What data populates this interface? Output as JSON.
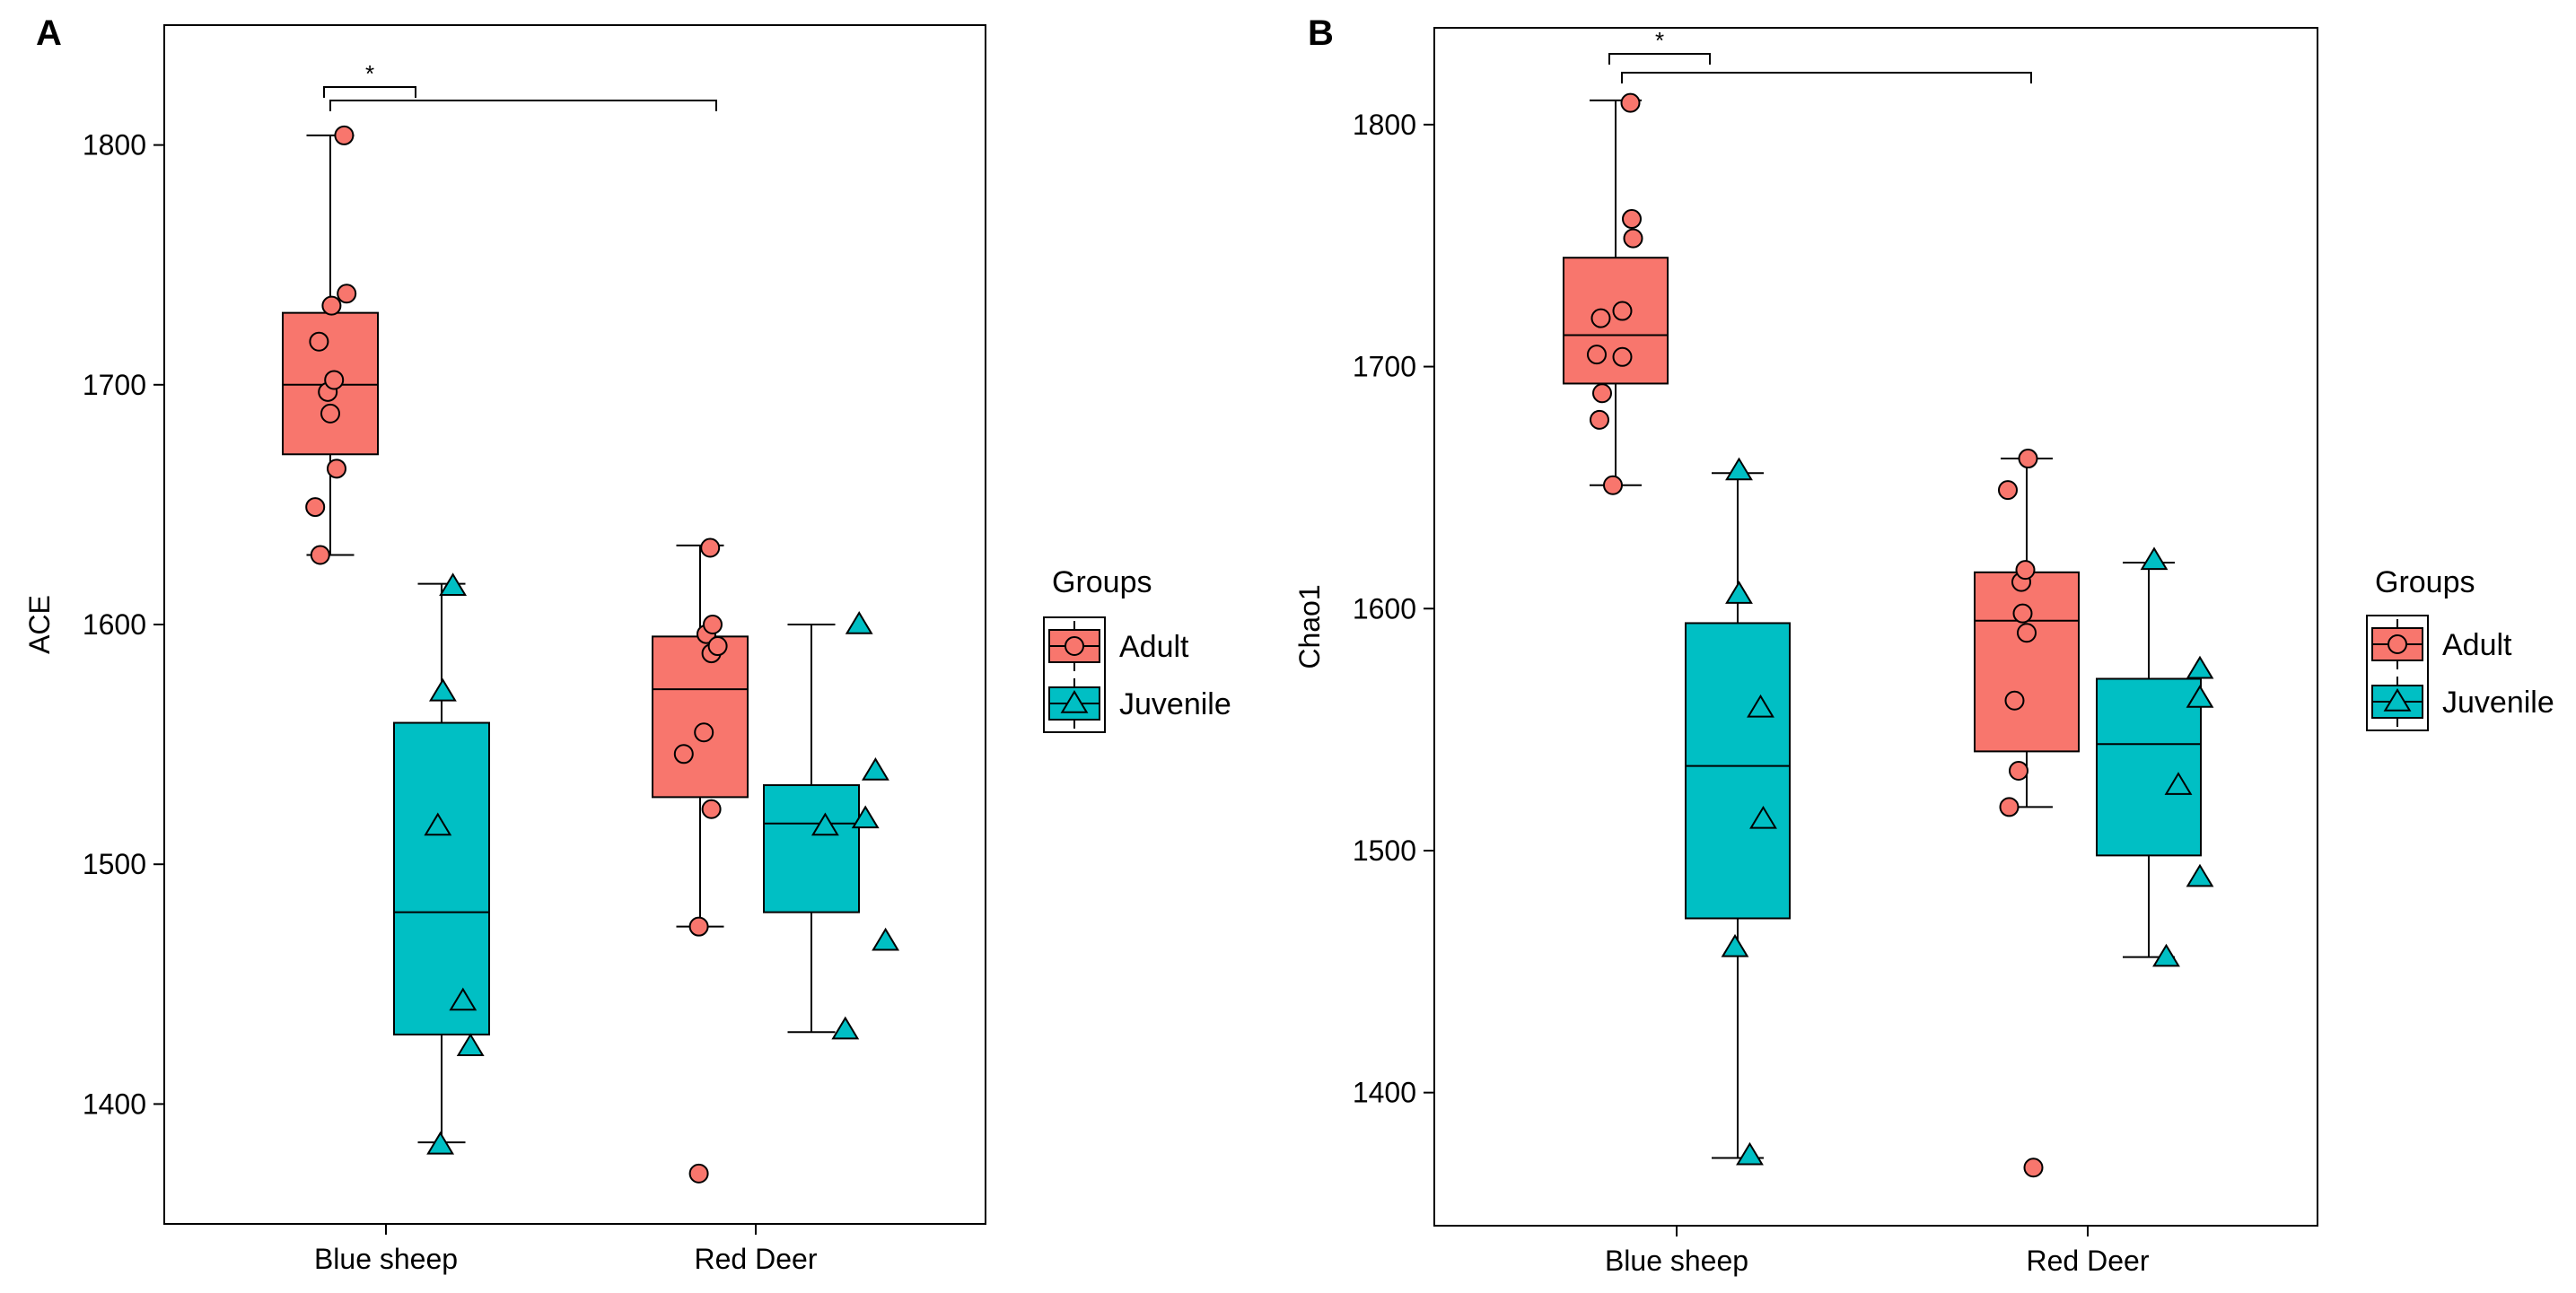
{
  "chart_data": [
    {
      "type": "box",
      "panel_label": "A",
      "ylabel": "ACE",
      "xlabel": "",
      "categories": [
        "Blue sheep",
        "Red Deer"
      ],
      "ylim": [
        1350,
        1850
      ],
      "yticks": [
        1400,
        1500,
        1600,
        1700,
        1800
      ],
      "series": [
        {
          "name": "Adult",
          "color": "#F8766D",
          "marker": "circle",
          "boxes": [
            {
              "category": "Blue sheep",
              "whisker_low": 1629,
              "q1": 1671,
              "median": 1700,
              "q3": 1730,
              "whisker_high": 1804
            },
            {
              "category": "Red Deer",
              "whisker_low": 1474,
              "q1": 1528,
              "median": 1573,
              "q3": 1595,
              "whisker_high": 1633
            }
          ],
          "points": [
            {
              "category": "Blue sheep",
              "offset": -0.12,
              "value": 1649
            },
            {
              "category": "Blue sheep",
              "offset": -0.08,
              "value": 1629
            },
            {
              "category": "Blue sheep",
              "offset": -0.09,
              "value": 1718
            },
            {
              "category": "Blue sheep",
              "offset": -0.02,
              "value": 1697
            },
            {
              "category": "Blue sheep",
              "offset": 0.0,
              "value": 1688
            },
            {
              "category": "Blue sheep",
              "offset": 0.01,
              "value": 1733
            },
            {
              "category": "Blue sheep",
              "offset": 0.03,
              "value": 1702
            },
            {
              "category": "Blue sheep",
              "offset": 0.05,
              "value": 1665
            },
            {
              "category": "Blue sheep",
              "offset": 0.11,
              "value": 1804
            },
            {
              "category": "Blue sheep",
              "offset": 0.13,
              "value": 1738
            },
            {
              "category": "Red Deer",
              "offset": -0.13,
              "value": 1546
            },
            {
              "category": "Red Deer",
              "offset": -0.01,
              "value": 1474
            },
            {
              "category": "Red Deer",
              "offset": 0.03,
              "value": 1555
            },
            {
              "category": "Red Deer",
              "offset": 0.05,
              "value": 1596
            },
            {
              "category": "Red Deer",
              "offset": 0.08,
              "value": 1632
            },
            {
              "category": "Red Deer",
              "offset": 0.09,
              "value": 1523
            },
            {
              "category": "Red Deer",
              "offset": 0.09,
              "value": 1588
            },
            {
              "category": "Red Deer",
              "offset": 0.1,
              "value": 1600
            },
            {
              "category": "Red Deer",
              "offset": 0.14,
              "value": 1591
            },
            {
              "category": "Red Deer",
              "offset": -0.01,
              "value": 1371
            }
          ]
        },
        {
          "name": "Juvenile",
          "color": "#00BFC4",
          "marker": "triangle",
          "boxes": [
            {
              "category": "Blue sheep",
              "whisker_low": 1384,
              "q1": 1429,
              "median": 1480,
              "q3": 1559,
              "whisker_high": 1617
            },
            {
              "category": "Red Deer",
              "whisker_low": 1430,
              "q1": 1480,
              "median": 1517,
              "q3": 1533,
              "whisker_high": 1600
            }
          ],
          "points": [
            {
              "category": "Blue sheep",
              "offset": -0.03,
              "value": 1516
            },
            {
              "category": "Blue sheep",
              "offset": -0.01,
              "value": 1383
            },
            {
              "category": "Blue sheep",
              "offset": 0.01,
              "value": 1572
            },
            {
              "category": "Blue sheep",
              "offset": 0.09,
              "value": 1616
            },
            {
              "category": "Blue sheep",
              "offset": 0.17,
              "value": 1443
            },
            {
              "category": "Blue sheep",
              "offset": 0.23,
              "value": 1424
            },
            {
              "category": "Red Deer",
              "offset": 0.11,
              "value": 1516
            },
            {
              "category": "Red Deer",
              "offset": 0.27,
              "value": 1431
            },
            {
              "category": "Red Deer",
              "offset": 0.38,
              "value": 1600
            },
            {
              "category": "Red Deer",
              "offset": 0.43,
              "value": 1519
            },
            {
              "category": "Red Deer",
              "offset": 0.51,
              "value": 1539
            },
            {
              "category": "Red Deer",
              "offset": 0.59,
              "value": 1468
            }
          ]
        }
      ],
      "significance": [
        {
          "from": "Blue sheep Adult",
          "to": "Blue sheep Juvenile",
          "label": "*"
        },
        {
          "from": "Blue sheep Adult",
          "to": "Red Deer Adult",
          "label": ""
        }
      ],
      "legend": {
        "title": "Groups",
        "entries": [
          "Adult",
          "Juvenile"
        ],
        "position": "right"
      }
    },
    {
      "type": "box",
      "panel_label": "B",
      "ylabel": "Chao1",
      "xlabel": "",
      "categories": [
        "Blue sheep",
        "Red Deer"
      ],
      "ylim": [
        1345,
        1840
      ],
      "yticks": [
        1400,
        1500,
        1600,
        1700,
        1800
      ],
      "series": [
        {
          "name": "Adult",
          "color": "#F8766D",
          "marker": "circle",
          "boxes": [
            {
              "category": "Blue sheep",
              "whisker_low": 1651,
              "q1": 1693,
              "median": 1713,
              "q3": 1745,
              "whisker_high": 1810
            },
            {
              "category": "Red Deer",
              "whisker_low": 1518,
              "q1": 1541,
              "median": 1595,
              "q3": 1615,
              "whisker_high": 1662
            }
          ],
          "points": [
            {
              "category": "Blue sheep",
              "offset": -0.14,
              "value": 1705
            },
            {
              "category": "Blue sheep",
              "offset": -0.12,
              "value": 1678
            },
            {
              "category": "Blue sheep",
              "offset": -0.11,
              "value": 1720
            },
            {
              "category": "Blue sheep",
              "offset": -0.1,
              "value": 1689
            },
            {
              "category": "Blue sheep",
              "offset": -0.02,
              "value": 1651
            },
            {
              "category": "Blue sheep",
              "offset": 0.05,
              "value": 1723
            },
            {
              "category": "Blue sheep",
              "offset": 0.05,
              "value": 1704
            },
            {
              "category": "Blue sheep",
              "offset": 0.11,
              "value": 1809
            },
            {
              "category": "Blue sheep",
              "offset": 0.12,
              "value": 1761
            },
            {
              "category": "Blue sheep",
              "offset": 0.13,
              "value": 1753
            },
            {
              "category": "Red Deer",
              "offset": -0.14,
              "value": 1649
            },
            {
              "category": "Red Deer",
              "offset": -0.13,
              "value": 1518
            },
            {
              "category": "Red Deer",
              "offset": -0.09,
              "value": 1562
            },
            {
              "category": "Red Deer",
              "offset": -0.06,
              "value": 1533
            },
            {
              "category": "Red Deer",
              "offset": -0.04,
              "value": 1611
            },
            {
              "category": "Red Deer",
              "offset": -0.03,
              "value": 1598
            },
            {
              "category": "Red Deer",
              "offset": -0.01,
              "value": 1616
            },
            {
              "category": "Red Deer",
              "offset": 0.0,
              "value": 1590
            },
            {
              "category": "Red Deer",
              "offset": 0.01,
              "value": 1662
            },
            {
              "category": "Red Deer",
              "offset": 0.05,
              "value": 1369
            }
          ]
        },
        {
          "name": "Juvenile",
          "color": "#00BFC4",
          "marker": "triangle",
          "boxes": [
            {
              "category": "Blue sheep",
              "whisker_low": 1373,
              "q1": 1472,
              "median": 1535,
              "q3": 1594,
              "whisker_high": 1656
            },
            {
              "category": "Red Deer",
              "whisker_low": 1456,
              "q1": 1498,
              "median": 1544,
              "q3": 1571,
              "whisker_high": 1619
            }
          ],
          "points": [
            {
              "category": "Blue sheep",
              "offset": -0.02,
              "value": 1460
            },
            {
              "category": "Blue sheep",
              "offset": 0.01,
              "value": 1657
            },
            {
              "category": "Blue sheep",
              "offset": 0.01,
              "value": 1606
            },
            {
              "category": "Blue sheep",
              "offset": 0.09,
              "value": 1374
            },
            {
              "category": "Blue sheep",
              "offset": 0.17,
              "value": 1559
            },
            {
              "category": "Blue sheep",
              "offset": 0.19,
              "value": 1513
            },
            {
              "category": "Red Deer",
              "offset": 0.13,
              "value": 1456
            },
            {
              "category": "Red Deer",
              "offset": 0.04,
              "value": 1620
            },
            {
              "category": "Red Deer",
              "offset": 0.22,
              "value": 1527
            },
            {
              "category": "Red Deer",
              "offset": 0.38,
              "value": 1575
            },
            {
              "category": "Red Deer",
              "offset": 0.38,
              "value": 1563
            },
            {
              "category": "Red Deer",
              "offset": 0.38,
              "value": 1489
            }
          ]
        }
      ],
      "significance": [
        {
          "from": "Blue sheep Adult",
          "to": "Blue sheep Juvenile",
          "label": "*"
        },
        {
          "from": "Blue sheep Adult",
          "to": "Red Deer Adult",
          "label": ""
        }
      ],
      "legend": {
        "title": "Groups",
        "entries": [
          "Adult",
          "Juvenile"
        ],
        "position": "right"
      }
    }
  ]
}
